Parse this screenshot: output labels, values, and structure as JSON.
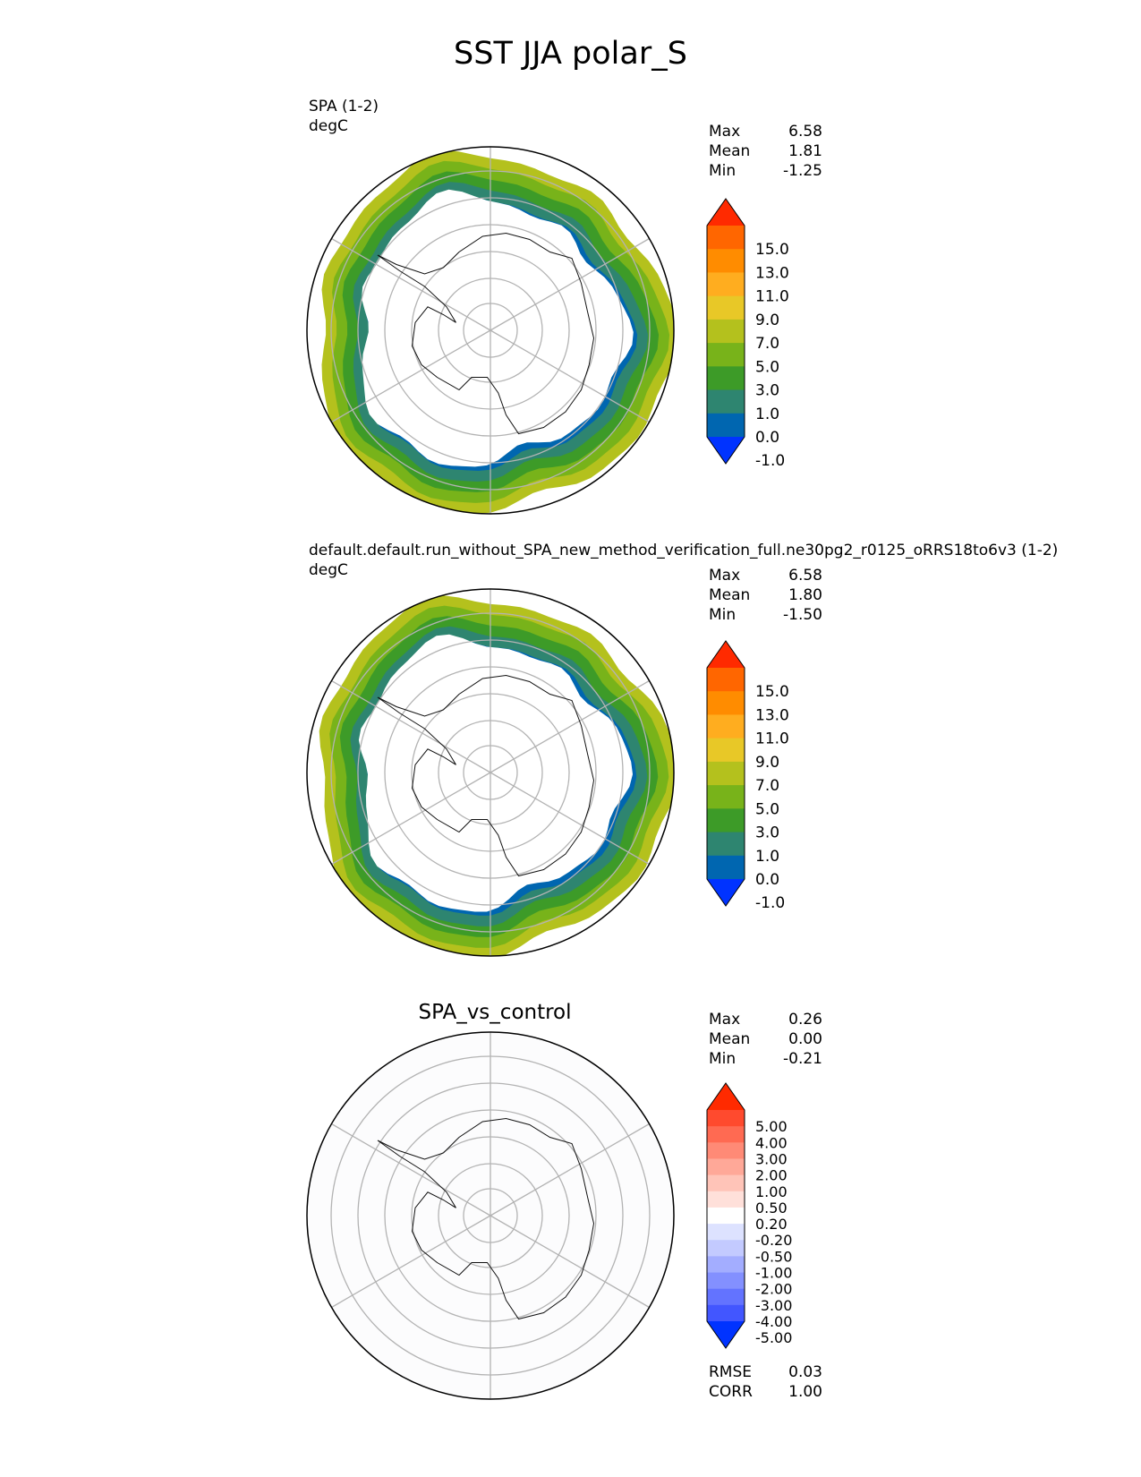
{
  "title": "SST JJA polar_S",
  "panels": [
    {
      "title": "SPA (1-2)",
      "units": "degC",
      "stats": [
        {
          "label": "Max",
          "value": "6.58"
        },
        {
          "label": "Mean",
          "value": "1.81"
        },
        {
          "label": "Min",
          "value": "-1.25"
        }
      ]
    },
    {
      "title": "default.default.run_without_SPA_new_method_verification_full.ne30pg2_r0125_oRRS18to6v3 (1-2)",
      "units": "degC",
      "stats": [
        {
          "label": "Max",
          "value": "6.58"
        },
        {
          "label": "Mean",
          "value": "1.80"
        },
        {
          "label": "Min",
          "value": "-1.50"
        }
      ]
    },
    {
      "title": "SPA_vs_control",
      "stats": [
        {
          "label": "Max",
          "value": "0.26"
        },
        {
          "label": "Mean",
          "value": "0.00"
        },
        {
          "label": "Min",
          "value": "-0.21"
        }
      ],
      "extra_stats": [
        {
          "label": "RMSE",
          "value": "0.03"
        },
        {
          "label": "CORR",
          "value": "1.00"
        }
      ]
    }
  ],
  "chart_data": [
    {
      "type": "heatmap",
      "projection": "south-polar-stereographic",
      "colorbar": {
        "ticks": [
          "15.0",
          "13.0",
          "11.0",
          "9.0",
          "7.0",
          "5.0",
          "3.0",
          "1.0",
          "0.0",
          "-1.0"
        ],
        "colors_top_to_bottom": [
          "#ff2a00",
          "#ff6600",
          "#ff8c00",
          "#ffad1f",
          "#e8c827",
          "#b4c11d",
          "#78b31a",
          "#3d9b28",
          "#2e8570",
          "#0066b0",
          "#0033ff"
        ],
        "extend": "both"
      },
      "bands_inner_to_outer": [
        "#0066b0",
        "#2e8570",
        "#3d9b28",
        "#78b31a",
        "#b4c11d"
      ]
    },
    {
      "type": "heatmap",
      "projection": "south-polar-stereographic",
      "colorbar": {
        "ticks": [
          "15.0",
          "13.0",
          "11.0",
          "9.0",
          "7.0",
          "5.0",
          "3.0",
          "1.0",
          "0.0",
          "-1.0"
        ],
        "colors_top_to_bottom": [
          "#ff2a00",
          "#ff6600",
          "#ff8c00",
          "#ffad1f",
          "#e8c827",
          "#b4c11d",
          "#78b31a",
          "#3d9b28",
          "#2e8570",
          "#0066b0",
          "#0033ff"
        ],
        "extend": "both"
      },
      "bands_inner_to_outer": [
        "#0066b0",
        "#2e8570",
        "#3d9b28",
        "#78b31a",
        "#b4c11d"
      ]
    },
    {
      "type": "heatmap",
      "projection": "south-polar-stereographic",
      "colorbar": {
        "ticks": [
          "5.00",
          "4.00",
          "3.00",
          "2.00",
          "1.00",
          "0.50",
          "0.20",
          "-0.20",
          "-0.50",
          "-1.00",
          "-2.00",
          "-3.00",
          "-4.00",
          "-5.00"
        ],
        "colors_top_to_bottom": [
          "#ff2a00",
          "#ff4a2e",
          "#ff6a52",
          "#ff8a76",
          "#ffa898",
          "#ffc4b8",
          "#ffe0da",
          "#ffffff",
          "#dde2ff",
          "#c3caff",
          "#a3adff",
          "#8390ff",
          "#6373ff",
          "#4256ff",
          "#0033ff"
        ],
        "extend": "both"
      },
      "bands_inner_to_outer": []
    }
  ]
}
